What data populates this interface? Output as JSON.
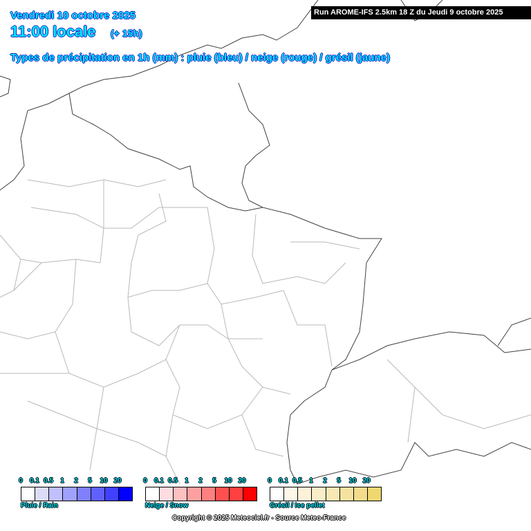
{
  "header": {
    "date": "Vendredi 10 octobre 2025",
    "time": "11:00 locale",
    "lead": "(+ 15h)",
    "subtitle": "Types de précipitation en 1h (mm) : pluie (bleu) / neige (rouge) / grésil (jaune)",
    "run": "Run AROME-IFS 2.5km 18 Z du Jeudi 9 octobre 2025"
  },
  "legends": [
    {
      "name": "Pluie / Rain",
      "ticks": [
        "0",
        "0.1",
        "0.5",
        "1",
        "2",
        "5",
        "10",
        "20"
      ],
      "colors": [
        "#ffffff",
        "#dcdcfa",
        "#c0c0ff",
        "#a0a0ff",
        "#8080ff",
        "#6060ff",
        "#4040ff",
        "#0000ff"
      ]
    },
    {
      "name": "Neige / Snow",
      "ticks": [
        "0",
        "0.1",
        "0.5",
        "1",
        "2",
        "5",
        "10",
        "20"
      ],
      "colors": [
        "#ffffff",
        "#ffdce0",
        "#ffc0c0",
        "#ffa0a0",
        "#ff8080",
        "#ff5050",
        "#ff4040",
        "#ff0000"
      ]
    },
    {
      "name": "Grésil / Ice pellet",
      "ticks": [
        "0",
        "0.1",
        "0.5",
        "1",
        "2",
        "5",
        "10",
        "20"
      ],
      "colors": [
        "#ffffff",
        "#fdf8e8",
        "#fbf2d8",
        "#f9eec8",
        "#f7e8b4",
        "#f5e2a0",
        "#f3dc8c",
        "#f0d870"
      ]
    }
  ],
  "copyright": "Copyright © 2025 Meteociel.fr - Source Meteo-France",
  "map_colors": {
    "coast_border": "#404040",
    "departments": "#b0b0b0"
  }
}
